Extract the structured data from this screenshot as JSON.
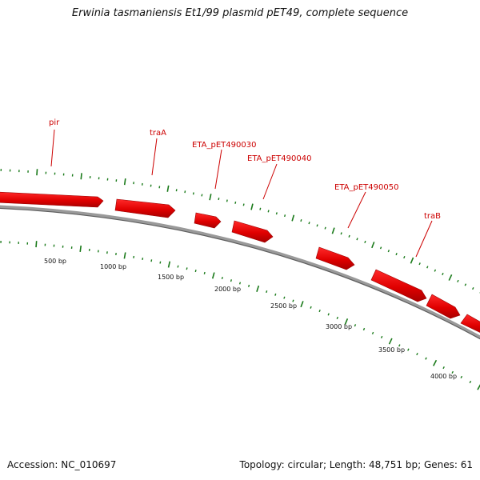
{
  "title": "Erwinia tasmaniensis Et1/99 plasmid pET49, complete sequence",
  "accession": "Accession: NC_010697",
  "summary": "Topology: circular; Length: 48,751 bp; Genes: 61",
  "colors": {
    "gene": "#ee0000",
    "gene_dark": "#b00000",
    "backbone": "#888888",
    "tick": "#1a7a1a",
    "label": "#cc0000"
  },
  "gene_labels": [
    {
      "name": "gene-label-pir",
      "text": "pir"
    },
    {
      "name": "gene-label-traA",
      "text": "traA"
    },
    {
      "name": "gene-label-eta30",
      "text": "ETA_pET490030"
    },
    {
      "name": "gene-label-eta40",
      "text": "ETA_pET490040"
    },
    {
      "name": "gene-label-eta50",
      "text": "ETA_pET490050"
    },
    {
      "name": "gene-label-traB",
      "text": "traB"
    }
  ],
  "scale_labels": [
    "500 bp",
    "1000 bp",
    "1500 bp",
    "2000 bp",
    "2500 bp",
    "3000 bp",
    "3500 bp",
    "4000 bp"
  ]
}
